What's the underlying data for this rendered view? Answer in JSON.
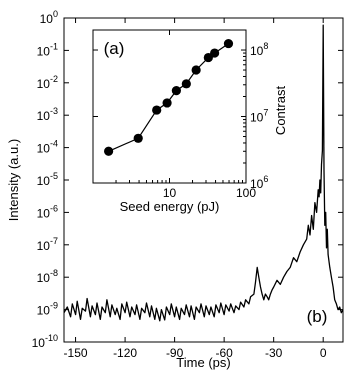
{
  "chart_data": [
    {
      "type": "line",
      "panel_label": "(b)",
      "xlabel": "Time (ps)",
      "ylabel": "Intensity (a.u.)",
      "xlim": [
        -157,
        12
      ],
      "ylim_exponents": [
        -10,
        0
      ],
      "yscale": "log",
      "x_ticks": [
        -150,
        -120,
        -90,
        -60,
        -30,
        0
      ],
      "y_tick_labels": [
        {
          "base": "10",
          "exp": "0"
        },
        {
          "base": "10",
          "exp": "-1"
        },
        {
          "base": "10",
          "exp": "-2"
        },
        {
          "base": "10",
          "exp": "-3"
        },
        {
          "base": "10",
          "exp": "-4"
        },
        {
          "base": "10",
          "exp": "-5"
        },
        {
          "base": "10",
          "exp": "-6"
        },
        {
          "base": "10",
          "exp": "-7"
        },
        {
          "base": "10",
          "exp": "-8"
        },
        {
          "base": "10",
          "exp": "-9"
        },
        {
          "base": "10",
          "exp": "-10"
        }
      ],
      "series": [
        {
          "x": [
            -157,
            -155,
            -153,
            -152,
            -150,
            -149,
            -147,
            -146,
            -144,
            -143,
            -141,
            -140,
            -138,
            -137,
            -135,
            -134,
            -132,
            -131,
            -129,
            -128,
            -126,
            -125,
            -123,
            -122,
            -120,
            -119,
            -117,
            -116,
            -114,
            -113,
            -111,
            -110,
            -108,
            -107,
            -105,
            -104,
            -102,
            -101,
            -99,
            -98,
            -96,
            -95,
            -93,
            -92,
            -90,
            -89,
            -87,
            -86,
            -84,
            -83,
            -81,
            -80,
            -78,
            -77,
            -75,
            -74,
            -72,
            -71,
            -69,
            -68,
            -66,
            -65,
            -63,
            -62,
            -60,
            -59,
            -57,
            -56,
            -54,
            -53,
            -51,
            -50,
            -48,
            -47,
            -45,
            -44,
            -42,
            -41,
            -40,
            -39,
            -38,
            -37,
            -36,
            -35,
            -34,
            -33,
            -32,
            -31,
            -30,
            -28,
            -26,
            -24,
            -22,
            -20,
            -18,
            -16,
            -14,
            -12,
            -10,
            -9,
            -8,
            -7,
            -6,
            -5,
            -4,
            -3,
            -2.5,
            -2,
            -1.5,
            -1,
            -0.5,
            0,
            0.5,
            1,
            1.5,
            2,
            2.5,
            3,
            4,
            5,
            6,
            7,
            8,
            9,
            10,
            11,
            12
          ],
          "y": [
            8e-10,
            1.2e-09,
            6e-10,
            1.5e-09,
            7e-10,
            1.8e-09,
            5e-10,
            1.1e-09,
            9e-10,
            2.2e-09,
            6e-10,
            1.3e-09,
            7e-10,
            1.6e-09,
            5e-10,
            1.2e-09,
            8e-10,
            2e-09,
            6e-10,
            1.4e-09,
            7e-10,
            1.1e-09,
            5e-10,
            1.5e-09,
            8e-10,
            1.7e-09,
            6e-10,
            1.2e-09,
            7e-10,
            1.4e-09,
            5e-10,
            1.1e-09,
            8e-10,
            1.6e-09,
            6e-10,
            1.3e-09,
            5e-10,
            1.1e-09,
            4.5e-10,
            1e-09,
            4.8e-10,
            1.2e-09,
            7e-10,
            1.5e-09,
            6e-10,
            1.2e-09,
            5e-10,
            1.1e-09,
            7e-10,
            1.4e-09,
            6e-10,
            1.3e-09,
            5e-10,
            1.2e-09,
            8e-10,
            1.5e-09,
            6e-10,
            1.3e-09,
            7e-10,
            1.2e-09,
            6e-10,
            1.4e-09,
            8e-10,
            1.6e-09,
            7e-10,
            1.4e-09,
            9e-10,
            1.5e-09,
            8e-10,
            1.3e-09,
            1e-09,
            1.7e-09,
            1.2e-09,
            2e-09,
            1.5e-09,
            2.5e-09,
            3e-09,
            7e-09,
            2e-08,
            1e-08,
            5e-09,
            3e-09,
            2e-09,
            3e-09,
            2.5e-09,
            2e-09,
            3e-09,
            4e-09,
            5e-09,
            8e-09,
            6e-09,
            1e-08,
            1.5e-08,
            2e-08,
            4e-08,
            3e-08,
            6e-08,
            1e-07,
            1.5e-07,
            4e-07,
            2e-07,
            8e-07,
            3e-07,
            2e-06,
            1e-06,
            5e-06,
            3e-06,
            1e-05,
            4e-06,
            3e-05,
            8e-05,
            0.6,
            2e-05,
            4e-07,
            1e-06,
            8e-08,
            3e-07,
            5e-08,
            2e-08,
            1e-08,
            5e-09,
            2e-09,
            1.5e-09,
            1e-09,
            1.2e-09,
            8e-10,
            1e-09
          ]
        }
      ]
    },
    {
      "type": "line",
      "panel_label": "(a)",
      "xlabel": "Seed energy (pJ)",
      "ylabel": "Contrast",
      "xscale": "log",
      "yscale": "log",
      "xlim": [
        1,
        100
      ],
      "ylim": [
        1000000,
        200000000
      ],
      "x_ticks": [
        "10",
        "100"
      ],
      "y_tick_labels": [
        {
          "base": "10",
          "exp": "8"
        },
        {
          "base": "10",
          "exp": "7"
        },
        {
          "base": "10",
          "exp": "6"
        }
      ],
      "series": [
        {
          "x": [
            1.6,
            3.9,
            6.8,
            9.3,
            12.3,
            16.6,
            22.3,
            32.2,
            38.9,
            59.0
          ],
          "y": [
            3000000.0,
            4700000.0,
            12500000.0,
            16000000.0,
            24500000.0,
            31000000.0,
            50000000.0,
            77000000.0,
            90000000.0,
            125000000.0
          ]
        }
      ]
    }
  ]
}
